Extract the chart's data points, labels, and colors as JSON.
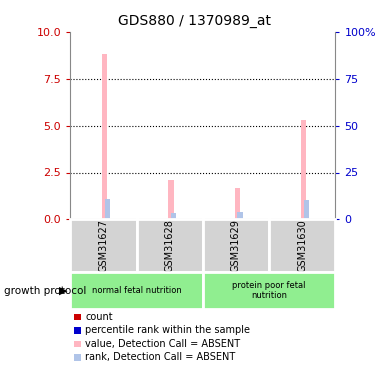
{
  "title": "GDS880 / 1370989_at",
  "samples": [
    "GSM31627",
    "GSM31628",
    "GSM31629",
    "GSM31630"
  ],
  "ylim_left": [
    0,
    10
  ],
  "ylim_right": [
    0,
    100
  ],
  "yticks_left": [
    0,
    2.5,
    5,
    7.5,
    10
  ],
  "yticks_right": [
    0,
    25,
    50,
    75,
    100
  ],
  "ytick_labels_right": [
    "0",
    "25",
    "50",
    "75",
    "100%"
  ],
  "bar_values": {
    "count": [
      0.0,
      0.0,
      0.0,
      0.0
    ],
    "percentile": [
      0.0,
      0.0,
      0.0,
      0.0
    ],
    "value_absent": [
      8.8,
      2.1,
      1.7,
      5.3
    ],
    "rank_absent": [
      1.1,
      0.35,
      0.4,
      1.05
    ]
  },
  "bar_colors": {
    "count": "#cc0000",
    "percentile": "#0000cc",
    "value_absent": "#ffb6c1",
    "rank_absent": "#b0c4e8"
  },
  "bar_width": 0.08,
  "bar_offsets": {
    "count": -0.06,
    "percentile": -0.02,
    "value_absent": 0.02,
    "rank_absent": 0.06
  },
  "group_box_color": "#d3d3d3",
  "group_label_bg": "#90ee90",
  "left_axis_color": "#cc0000",
  "right_axis_color": "#0000cc",
  "legend_items": [
    {
      "label": "count",
      "color": "#cc0000"
    },
    {
      "label": "percentile rank within the sample",
      "color": "#0000cc"
    },
    {
      "label": "value, Detection Call = ABSENT",
      "color": "#ffb6c1"
    },
    {
      "label": "rank, Detection Call = ABSENT",
      "color": "#b0c4e8"
    }
  ]
}
